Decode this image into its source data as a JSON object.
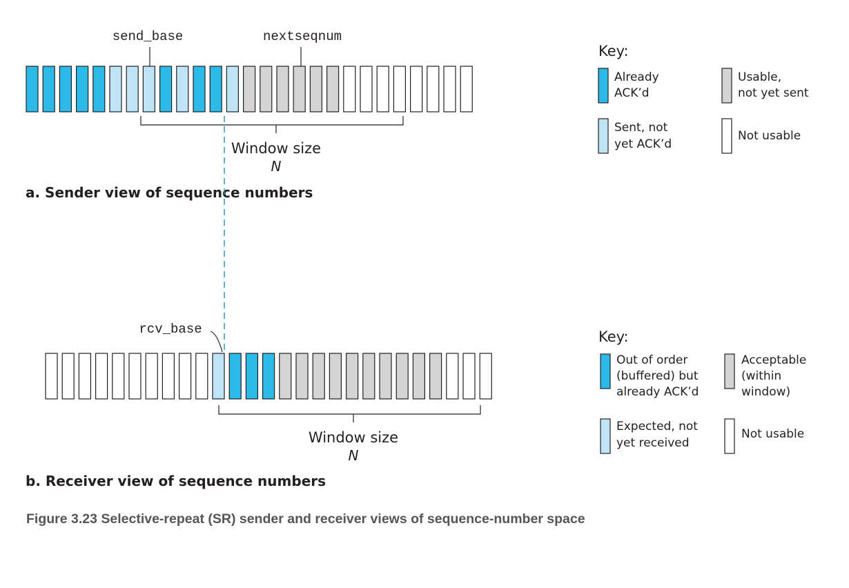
{
  "colors": {
    "acked": "#2cbbe8",
    "pending": "#bfe4f6",
    "usable": "#d4d4d4",
    "not_usable": "#ffffff",
    "outline": "#231f20",
    "dashed_line": "#1f8fbf"
  },
  "sender": {
    "send_base_label": "send_base",
    "nextseqnum_label": "nextseqnum",
    "window_label": "Window size",
    "window_symbol": "N",
    "view_title": "a. Sender view of sequence numbers",
    "cells": [
      "acked",
      "acked",
      "acked",
      "acked",
      "acked",
      "pending",
      "pending",
      "pending",
      "acked",
      "pending",
      "acked",
      "acked",
      "pending",
      "usable",
      "usable",
      "usable",
      "usable",
      "usable",
      "usable",
      "not_usable",
      "not_usable",
      "not_usable",
      "not_usable",
      "not_usable",
      "not_usable",
      "not_usable",
      "not_usable"
    ],
    "key": {
      "title": "Key:",
      "items": [
        {
          "status": "acked",
          "lines": [
            "Already",
            "ACK’d"
          ]
        },
        {
          "status": "usable",
          "lines": [
            "Usable,",
            "not yet sent"
          ]
        },
        {
          "status": "pending",
          "lines": [
            "Sent, not",
            "yet ACK’d"
          ]
        },
        {
          "status": "not_usable",
          "lines": [
            "Not usable"
          ]
        }
      ]
    }
  },
  "receiver": {
    "rcv_base_label": "rcv_base",
    "window_label": "Window size",
    "window_symbol": "N",
    "view_title": "b. Receiver view of sequence numbers",
    "cells": [
      "not_usable",
      "not_usable",
      "not_usable",
      "not_usable",
      "not_usable",
      "not_usable",
      "not_usable",
      "not_usable",
      "not_usable",
      "not_usable",
      "pending",
      "acked",
      "acked",
      "acked",
      "usable",
      "usable",
      "usable",
      "usable",
      "usable",
      "usable",
      "usable",
      "usable",
      "usable",
      "usable",
      "not_usable",
      "not_usable",
      "not_usable"
    ],
    "key": {
      "title": "Key:",
      "items": [
        {
          "status": "acked",
          "lines": [
            "Out of order",
            "(buffered) but",
            "already ACK’d"
          ]
        },
        {
          "status": "usable",
          "lines": [
            "Acceptable",
            "(within",
            "window)"
          ]
        },
        {
          "status": "pending",
          "lines": [
            "Expected, not",
            "yet received"
          ]
        },
        {
          "status": "not_usable",
          "lines": [
            "Not usable"
          ]
        }
      ]
    }
  },
  "caption": "Figure 3.23 Selective-repeat (SR) sender and receiver views of sequence-number space"
}
